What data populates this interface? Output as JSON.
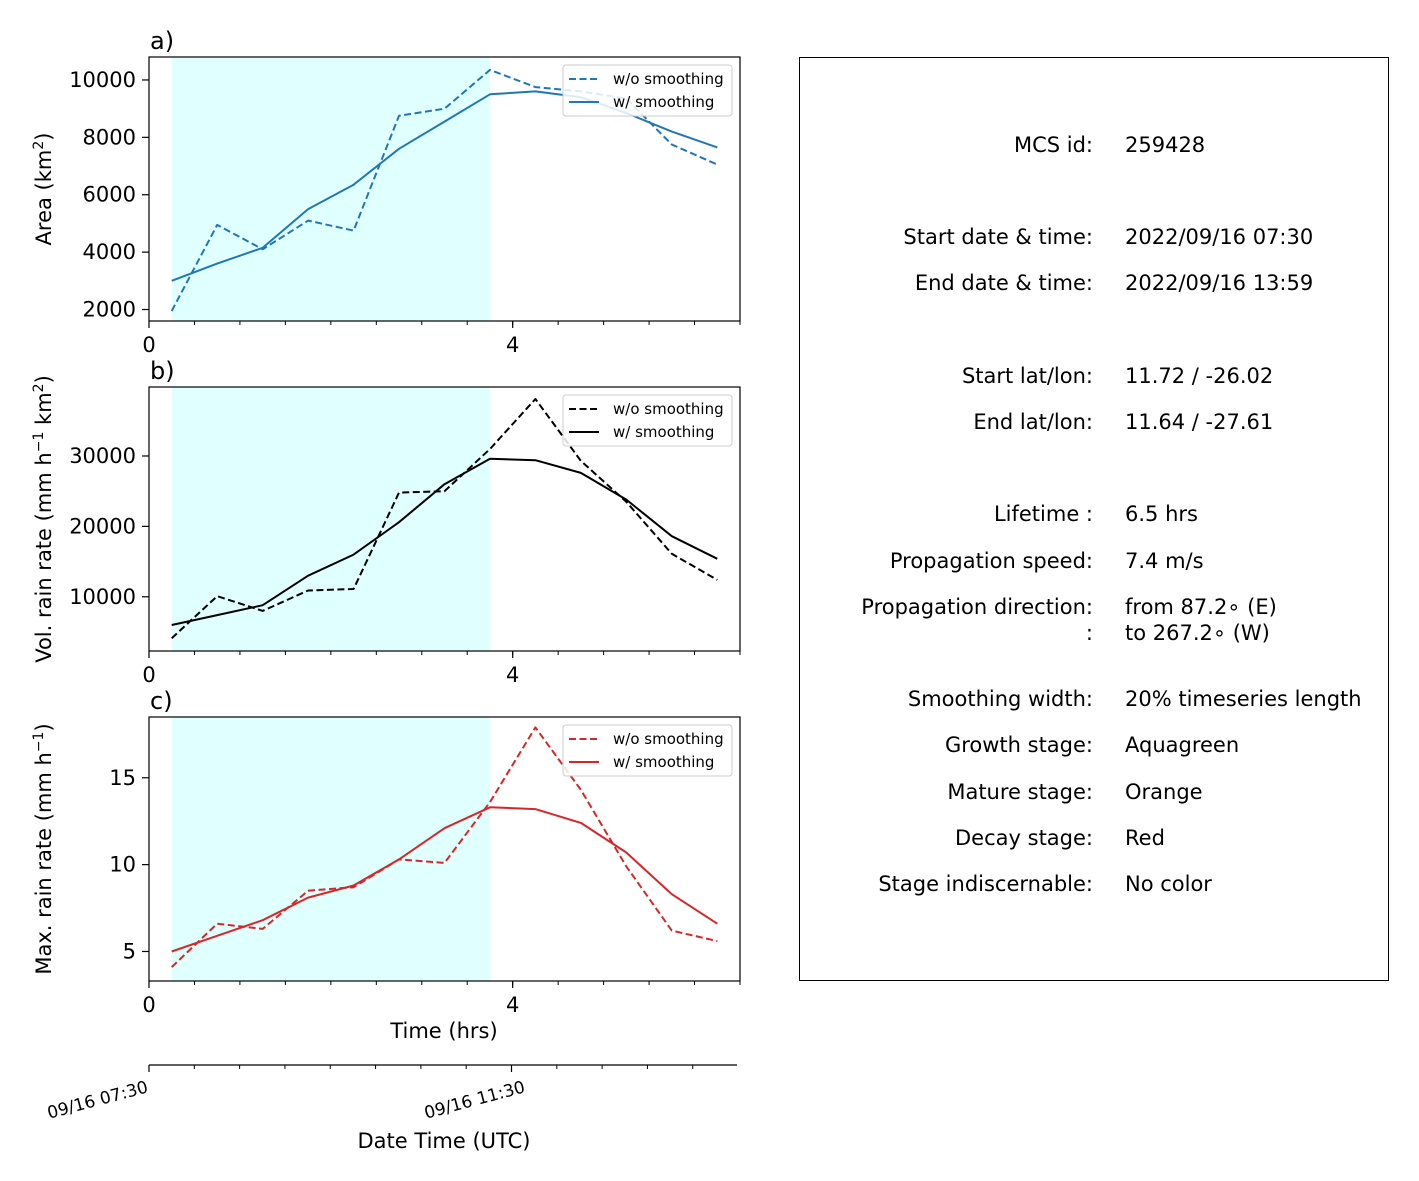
{
  "figure": {
    "panels": [
      "a)",
      "b)",
      "c)"
    ],
    "xaxis_label": "Time (hrs)",
    "datetime_axis_label": "Date Time (UTC)",
    "datetime_ticks": [
      "09/16 07:30",
      "09/16 11:30"
    ],
    "shade_color": "#e0ffff"
  },
  "chart_data": [
    {
      "type": "line",
      "panel": "a)",
      "ylabel_main": "Area  (km",
      "ylabel_sup": "2",
      "ylabel_end": ")",
      "color": "#1f77b4",
      "xlim": [
        0,
        6.5
      ],
      "ylim": [
        1600,
        10800
      ],
      "xticks": [
        0,
        4
      ],
      "yticks": [
        2000,
        4000,
        6000,
        8000,
        10000
      ],
      "shaded_x": [
        0.25,
        3.75
      ],
      "x": [
        0.25,
        0.75,
        1.25,
        1.75,
        2.25,
        2.75,
        3.25,
        3.75,
        4.25,
        4.75,
        5.25,
        5.75,
        6.25
      ],
      "series": [
        {
          "name": "w/o smoothing",
          "style": "dashed",
          "values": [
            1950,
            4950,
            4100,
            5100,
            4750,
            8750,
            9000,
            10350,
            9750,
            9600,
            9350,
            7750,
            7050
          ]
        },
        {
          "name": "w/ smoothing",
          "style": "solid",
          "values": [
            3000,
            3600,
            4150,
            5500,
            6350,
            7600,
            8550,
            9500,
            9600,
            9400,
            8850,
            8200,
            7650
          ]
        }
      ]
    },
    {
      "type": "line",
      "panel": "b)",
      "ylabel_main": "Vol. rain rate (mm h",
      "ylabel_sup": "−1",
      "ylabel_mid": " km",
      "ylabel_sup2": "2",
      "ylabel_end": ")",
      "color": "#000000",
      "xlim": [
        0,
        6.5
      ],
      "ylim": [
        2300,
        39800
      ],
      "xticks": [
        0,
        4
      ],
      "yticks": [
        10000,
        20000,
        30000
      ],
      "shaded_x": [
        0.25,
        3.75
      ],
      "x": [
        0.25,
        0.75,
        1.25,
        1.75,
        2.25,
        2.75,
        3.25,
        3.75,
        4.25,
        4.75,
        5.25,
        5.75,
        6.25
      ],
      "series": [
        {
          "name": "w/o smoothing",
          "style": "dashed",
          "values": [
            4100,
            10100,
            8000,
            10900,
            11100,
            24800,
            25000,
            31000,
            38100,
            29300,
            23500,
            16100,
            12400
          ]
        },
        {
          "name": "w/ smoothing",
          "style": "solid",
          "values": [
            6000,
            7400,
            8800,
            13000,
            16000,
            20600,
            26000,
            29600,
            29400,
            27600,
            23800,
            18600,
            15400
          ]
        }
      ]
    },
    {
      "type": "line",
      "panel": "c)",
      "ylabel_main": "Max. rain rate  (mm h",
      "ylabel_sup": "−1",
      "ylabel_end": ")",
      "color": "#d62728",
      "xlim": [
        0,
        6.5
      ],
      "ylim": [
        3.3,
        18.5
      ],
      "xticks": [
        0,
        4
      ],
      "yticks": [
        5,
        10,
        15
      ],
      "shaded_x": [
        0.25,
        3.75
      ],
      "x": [
        0.25,
        0.75,
        1.25,
        1.75,
        2.25,
        2.75,
        3.25,
        3.75,
        4.25,
        4.75,
        5.25,
        5.75,
        6.25
      ],
      "series": [
        {
          "name": "w/o smoothing",
          "style": "dashed",
          "values": [
            4.1,
            6.6,
            6.3,
            8.5,
            8.7,
            10.3,
            10.1,
            13.6,
            17.9,
            14.3,
            9.9,
            6.2,
            5.6
          ]
        },
        {
          "name": "w/ smoothing",
          "style": "solid",
          "values": [
            5.0,
            5.9,
            6.8,
            8.1,
            8.8,
            10.3,
            12.1,
            13.3,
            13.2,
            12.4,
            10.7,
            8.3,
            6.6
          ]
        }
      ]
    }
  ],
  "info": {
    "rows": [
      {
        "label": "MCS id:",
        "value": "259428"
      },
      {
        "label": "Start date & time:",
        "value": "2022/09/16 07:30"
      },
      {
        "label": "End date & time:",
        "value": "2022/09/16 13:59"
      },
      {
        "label": "Start lat/lon:",
        "value": "11.72 / -26.02"
      },
      {
        "label": "End lat/lon:",
        "value": "11.64 / -27.61"
      },
      {
        "label": "Lifetime :",
        "value": "6.5 hrs"
      },
      {
        "label": "Propagation speed:",
        "value": "7.4 m/s"
      },
      {
        "label": "Propagation direction:",
        "value": "from  87.2∘ (E)"
      },
      {
        "label": ":",
        "value": "to   267.2∘ (W)"
      },
      {
        "label": "Smoothing width:",
        "value": "20% timeseries length"
      },
      {
        "label": "Growth stage:",
        "value": "Aquagreen"
      },
      {
        "label": "Mature stage:",
        "value": "Orange"
      },
      {
        "label": "Decay stage:",
        "value": "Red"
      },
      {
        "label": "Stage indiscernable:",
        "value": "No color"
      }
    ]
  }
}
